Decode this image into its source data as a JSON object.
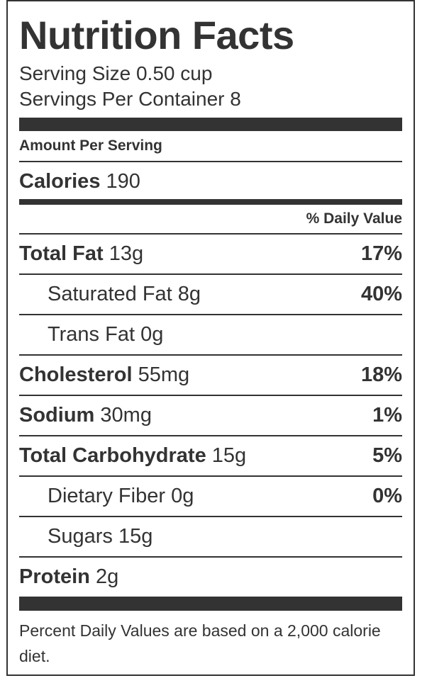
{
  "title": "Nutrition Facts",
  "serving_size": "Serving Size 0.50 cup",
  "servings_per_container": "Servings Per Container 8",
  "amount_per_serving": "Amount Per Serving",
  "calories": {
    "label": "Calories",
    "value": "190"
  },
  "daily_value_header": "% Daily Value",
  "nutrients": [
    {
      "label": "Total Fat",
      "amount": "13g",
      "dv": "17%"
    },
    {
      "label": "Saturated Fat",
      "amount": "8g",
      "dv": "40%"
    },
    {
      "label": "Trans Fat",
      "amount": "0g",
      "dv": ""
    },
    {
      "label": "Cholesterol",
      "amount": "55mg",
      "dv": "18%"
    },
    {
      "label": "Sodium",
      "amount": "30mg",
      "dv": "1%"
    },
    {
      "label": "Total Carbohydrate",
      "amount": "15g",
      "dv": "5%"
    },
    {
      "label": "Dietary Fiber",
      "amount": "0g",
      "dv": "0%"
    },
    {
      "label": "Sugars",
      "amount": "15g",
      "dv": ""
    },
    {
      "label": "Protein",
      "amount": "2g",
      "dv": ""
    }
  ],
  "footnote": "Percent Daily Values are based on a 2,000 calorie diet."
}
